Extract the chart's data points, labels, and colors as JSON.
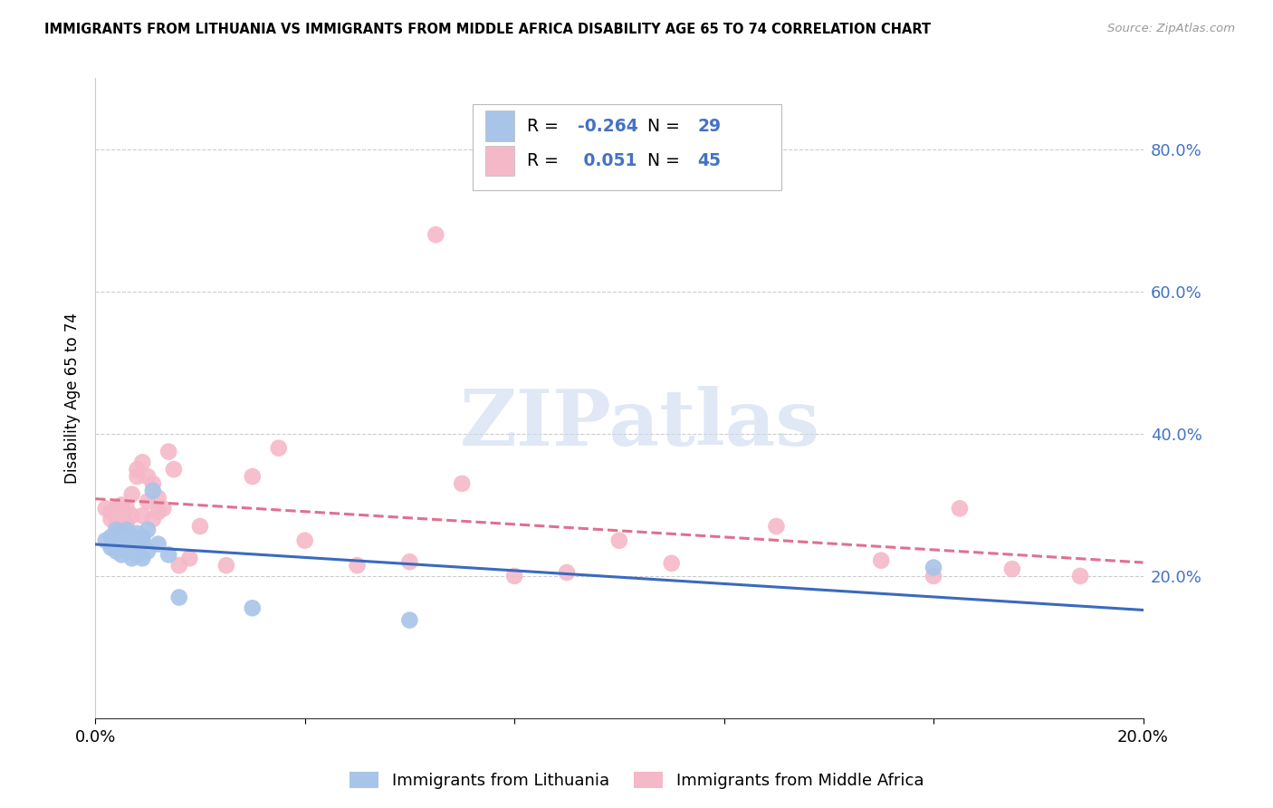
{
  "title": "IMMIGRANTS FROM LITHUANIA VS IMMIGRANTS FROM MIDDLE AFRICA DISABILITY AGE 65 TO 74 CORRELATION CHART",
  "source": "Source: ZipAtlas.com",
  "ylabel": "Disability Age 65 to 74",
  "xlim": [
    0.0,
    0.2
  ],
  "ylim": [
    0.0,
    0.9
  ],
  "blue_label": "Immigrants from Lithuania",
  "pink_label": "Immigrants from Middle Africa",
  "blue_R": "-0.264",
  "blue_N": "29",
  "pink_R": "0.051",
  "pink_N": "45",
  "blue_color": "#a8c4e8",
  "pink_color": "#f5b8c8",
  "blue_line_color": "#3a6abf",
  "pink_line_color": "#e07090",
  "legend_text_color": "#4472c4",
  "right_tick_color": "#4472c4",
  "watermark_color": "#ccd9f0",
  "blue_x": [
    0.002,
    0.003,
    0.003,
    0.004,
    0.004,
    0.005,
    0.005,
    0.005,
    0.006,
    0.006,
    0.006,
    0.007,
    0.007,
    0.007,
    0.008,
    0.008,
    0.008,
    0.009,
    0.009,
    0.009,
    0.01,
    0.01,
    0.011,
    0.012,
    0.014,
    0.016,
    0.03,
    0.06,
    0.16
  ],
  "blue_y": [
    0.25,
    0.255,
    0.24,
    0.265,
    0.235,
    0.26,
    0.25,
    0.23,
    0.265,
    0.25,
    0.235,
    0.255,
    0.245,
    0.225,
    0.26,
    0.24,
    0.23,
    0.255,
    0.25,
    0.225,
    0.265,
    0.235,
    0.32,
    0.245,
    0.23,
    0.17,
    0.155,
    0.138,
    0.212
  ],
  "pink_x": [
    0.002,
    0.003,
    0.003,
    0.004,
    0.004,
    0.005,
    0.005,
    0.006,
    0.006,
    0.007,
    0.007,
    0.008,
    0.008,
    0.009,
    0.009,
    0.01,
    0.01,
    0.011,
    0.011,
    0.012,
    0.012,
    0.013,
    0.014,
    0.015,
    0.016,
    0.018,
    0.02,
    0.025,
    0.03,
    0.035,
    0.04,
    0.05,
    0.06,
    0.065,
    0.07,
    0.08,
    0.09,
    0.1,
    0.11,
    0.13,
    0.15,
    0.16,
    0.165,
    0.175,
    0.188
  ],
  "pink_y": [
    0.295,
    0.29,
    0.28,
    0.295,
    0.27,
    0.285,
    0.3,
    0.275,
    0.295,
    0.285,
    0.315,
    0.35,
    0.34,
    0.36,
    0.285,
    0.305,
    0.34,
    0.28,
    0.33,
    0.31,
    0.29,
    0.295,
    0.375,
    0.35,
    0.215,
    0.225,
    0.27,
    0.215,
    0.34,
    0.38,
    0.25,
    0.215,
    0.22,
    0.68,
    0.33,
    0.2,
    0.205,
    0.25,
    0.218,
    0.27,
    0.222,
    0.2,
    0.295,
    0.21,
    0.2
  ]
}
